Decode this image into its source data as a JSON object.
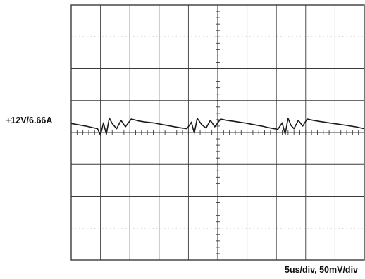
{
  "chart_data": {
    "type": "line",
    "title": "",
    "xlabel": "",
    "ylabel": "",
    "divisions": {
      "x": 10,
      "y": 8
    },
    "xlim": [
      0,
      10
    ],
    "ylim": [
      -4,
      4
    ],
    "grid": true,
    "channel_label": "+12V/6.66A",
    "scale_label": "5us/div,  50mV/div",
    "colors": {
      "trace": "#1a1a1a",
      "grid": "#3a3a3a",
      "background": "#ffffff"
    },
    "series": [
      {
        "x": [
          0.0,
          0.5,
          0.9,
          1.0,
          1.1,
          1.2,
          1.3,
          1.4,
          1.55,
          1.7,
          1.85,
          2.05,
          2.3,
          2.5,
          2.8,
          3.1,
          3.4,
          3.7,
          3.95,
          4.1,
          4.2,
          4.3,
          4.45,
          4.6,
          4.75,
          4.9,
          5.1,
          5.3,
          5.6,
          5.9,
          6.2,
          6.5,
          6.8,
          7.05,
          7.2,
          7.3,
          7.4,
          7.5,
          7.6,
          7.75,
          7.9,
          8.05,
          8.25,
          8.5,
          8.8,
          9.1,
          9.4,
          9.7,
          10.0
        ],
        "y": [
          0.28,
          0.2,
          0.12,
          -0.08,
          0.3,
          -0.05,
          0.45,
          0.28,
          0.12,
          0.38,
          0.18,
          0.42,
          0.36,
          0.33,
          0.3,
          0.25,
          0.2,
          0.15,
          0.12,
          0.32,
          -0.02,
          0.44,
          0.25,
          0.14,
          0.38,
          0.18,
          0.42,
          0.38,
          0.34,
          0.3,
          0.25,
          0.2,
          0.14,
          0.1,
          0.3,
          -0.05,
          0.44,
          0.22,
          0.12,
          0.38,
          0.2,
          0.42,
          0.38,
          0.34,
          0.3,
          0.26,
          0.22,
          0.18,
          0.12
        ]
      }
    ]
  }
}
